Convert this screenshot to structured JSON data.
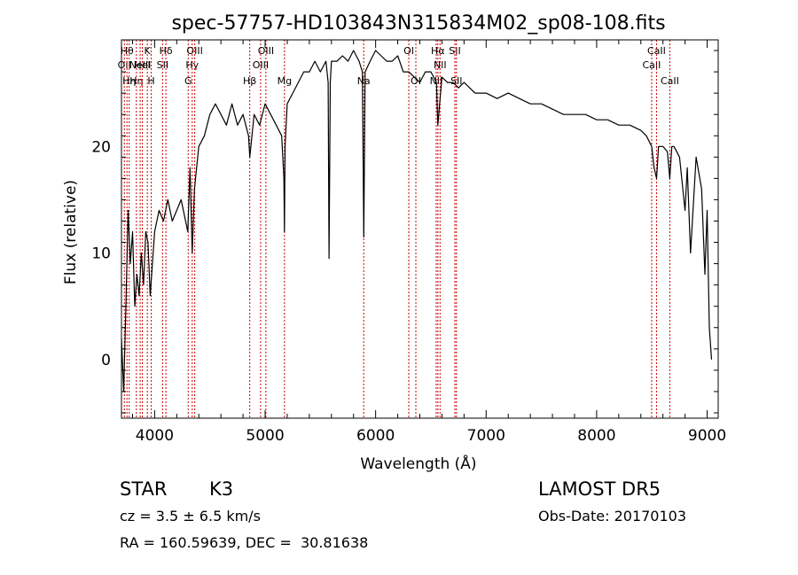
{
  "chart_data": {
    "type": "line",
    "title": "spec-57757-HD103843N315834M02_sp08-108.fits",
    "xlabel": "Wavelength (Å)",
    "ylabel": "Flux (relative)",
    "xlim": [
      3700,
      9100
    ],
    "ylim": [
      -5.5,
      30
    ],
    "xticks": [
      4000,
      5000,
      6000,
      7000,
      8000,
      9000
    ],
    "yticks": [
      0,
      10,
      20
    ],
    "grid": false,
    "series": [
      {
        "x": [
          3700,
          3720,
          3740,
          3760,
          3780,
          3800,
          3820,
          3840,
          3860,
          3880,
          3900,
          3920,
          3940,
          3960,
          3980,
          4000,
          4040,
          4080,
          4120,
          4160,
          4200,
          4240,
          4280,
          4300,
          4320,
          4340,
          4360,
          4400,
          4450,
          4500,
          4550,
          4600,
          4650,
          4700,
          4750,
          4800,
          4850,
          4861,
          4900,
          4950,
          5000,
          5050,
          5100,
          5150,
          5170,
          5175,
          5180,
          5200,
          5250,
          5300,
          5350,
          5400,
          5450,
          5500,
          5550,
          5570,
          5578,
          5590,
          5600,
          5650,
          5700,
          5750,
          5800,
          5850,
          5880,
          5893,
          5905,
          5950,
          6000,
          6050,
          6100,
          6150,
          6200,
          6250,
          6300,
          6350,
          6400,
          6450,
          6500,
          6550,
          6563,
          6600,
          6650,
          6700,
          6750,
          6800,
          6850,
          6900,
          6950,
          7000,
          7100,
          7200,
          7300,
          7400,
          7500,
          7600,
          7700,
          7800,
          7900,
          8000,
          8100,
          8200,
          8300,
          8400,
          8450,
          8498,
          8520,
          8542,
          8560,
          8600,
          8640,
          8662,
          8680,
          8700,
          8750,
          8800,
          8820,
          8850,
          8900,
          8950,
          8980,
          9000,
          9020,
          9040
        ],
        "y": [
          2,
          -3,
          5,
          14,
          9,
          12,
          5,
          8,
          6,
          10,
          7,
          12,
          11,
          6,
          9,
          12,
          14,
          13,
          15,
          13,
          14,
          15,
          13,
          12,
          18,
          10,
          16,
          20,
          21,
          23,
          24,
          23,
          22,
          24,
          22,
          23,
          21,
          19,
          23,
          22,
          24,
          23,
          22,
          21,
          17,
          12,
          20,
          24,
          25,
          26,
          27,
          27,
          28,
          27,
          28,
          26,
          9.5,
          26,
          28,
          28,
          28.5,
          28,
          29,
          28,
          27,
          11.5,
          27,
          28,
          29,
          28.5,
          28,
          28,
          28.5,
          27,
          27,
          26.5,
          26,
          27,
          27,
          26,
          22,
          26.5,
          26,
          26,
          25.5,
          26,
          25.5,
          25,
          25,
          25,
          24.5,
          25,
          24.5,
          24,
          24,
          23.5,
          23,
          23,
          23,
          22.5,
          22.5,
          22,
          22,
          21.5,
          21,
          20,
          18,
          17,
          20,
          20,
          19.5,
          17,
          20,
          20,
          19,
          14,
          18,
          10,
          19,
          16,
          8,
          14,
          3,
          0
        ]
      }
    ],
    "line_markers": [
      {
        "x": 3726,
        "label": "OII",
        "row": 1
      },
      {
        "x": 3750,
        "label": "Hθ",
        "row": 0
      },
      {
        "x": 3770,
        "label": "Hη",
        "row": 2
      },
      {
        "x": 3835,
        "label": "Hη",
        "row": 2
      },
      {
        "x": 3869,
        "label": "NeIII",
        "row": 1
      },
      {
        "x": 3889,
        "label": "HeI",
        "row": 1
      },
      {
        "x": 3934,
        "label": "K",
        "row": 0
      },
      {
        "x": 3969,
        "label": "H",
        "row": 2
      },
      {
        "x": 4072,
        "label": "SII",
        "row": 1
      },
      {
        "x": 4102,
        "label": "Hδ",
        "row": 0
      },
      {
        "x": 4304,
        "label": "G",
        "row": 2
      },
      {
        "x": 4340,
        "label": "Hγ",
        "row": 1
      },
      {
        "x": 4363,
        "label": "OIII",
        "row": 0
      },
      {
        "x": 4861,
        "label": "Hβ",
        "row": 2
      },
      {
        "x": 4959,
        "label": "OIII",
        "row": 1
      },
      {
        "x": 5007,
        "label": "OIII",
        "row": 0
      },
      {
        "x": 5175,
        "label": "Mg",
        "row": 2
      },
      {
        "x": 5892,
        "label": "Na",
        "row": 2
      },
      {
        "x": 6300,
        "label": "OI",
        "row": 0
      },
      {
        "x": 6364,
        "label": "OI",
        "row": 2
      },
      {
        "x": 6548,
        "label": "NII",
        "row": 2
      },
      {
        "x": 6563,
        "label": "Hα",
        "row": 0
      },
      {
        "x": 6583,
        "label": "NII",
        "row": 1
      },
      {
        "x": 6717,
        "label": "SII",
        "row": 0
      },
      {
        "x": 6731,
        "label": "SII",
        "row": 2
      },
      {
        "x": 8498,
        "label": "CaII",
        "row": 1
      },
      {
        "x": 8542,
        "label": "CaII",
        "row": 0
      },
      {
        "x": 8662,
        "label": "CaII",
        "row": 2
      }
    ]
  },
  "info": {
    "class": "STAR",
    "subclass": "K3",
    "survey": "LAMOST DR5",
    "cz": "cz = 3.5 ± 6.5 km/s",
    "obs_date": "Obs-Date: 20170103",
    "coords": "RA = 160.59639, DEC =  30.81638"
  },
  "colors": {
    "spectrum": "#000000",
    "marker_line": "#cc0000",
    "axes": "#000000"
  }
}
